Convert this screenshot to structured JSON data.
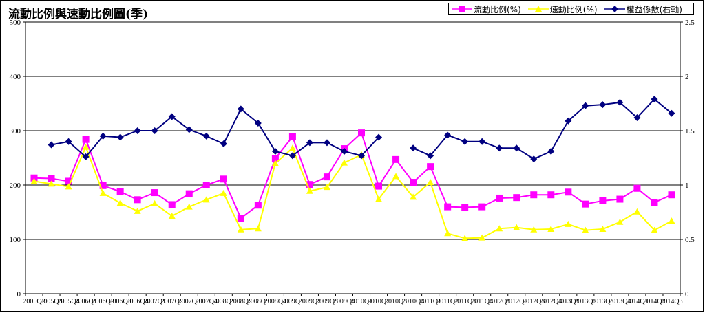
{
  "chart_data": {
    "type": "line",
    "title": "流動比例與速動比例圖(季)",
    "legend_position": "top-right",
    "grid": true,
    "x": [
      "2005Q2",
      "2005Q3",
      "2005Q4",
      "2006Q1",
      "2006Q2",
      "2006Q3",
      "2006Q4",
      "2007Q1",
      "2007Q2",
      "2007Q3",
      "2007Q4",
      "2008Q1",
      "2008Q2",
      "2008Q3",
      "2008Q4",
      "2009Q1",
      "2009Q2",
      "2009Q3",
      "2009Q4",
      "2010Q1",
      "2010Q2",
      "2010Q3",
      "2010Q4",
      "2011Q1",
      "2011Q2",
      "2011Q3",
      "2011Q4",
      "2012Q1",
      "2012Q2",
      "2012Q3",
      "2012Q4",
      "2013Q1",
      "2013Q2",
      "2013Q3",
      "2013Q4",
      "2014Q1",
      "2014Q2",
      "2014Q3"
    ],
    "y_left": {
      "range": [
        0,
        500
      ],
      "ticks": [
        "0",
        "100",
        "200",
        "300",
        "400",
        "500"
      ]
    },
    "y_right": {
      "range": [
        0,
        2.5
      ],
      "ticks": [
        "0",
        "0.5",
        "1",
        "1.5",
        "2",
        "2.5"
      ]
    },
    "series": [
      {
        "name": "流動比例(%)",
        "axis": "left",
        "color": "#ff00ff",
        "marker": "square",
        "values": [
          213,
          212,
          207,
          284,
          199,
          188,
          173,
          186,
          164,
          184,
          200,
          211,
          139,
          163,
          249,
          289,
          201,
          215,
          267,
          296,
          198,
          247,
          205,
          234,
          160,
          159,
          160,
          176,
          177,
          182,
          182,
          187,
          165,
          171,
          174,
          194,
          168,
          182
        ]
      },
      {
        "name": "速動比例(%)",
        "axis": "left",
        "color": "#ffff00",
        "marker": "triangle",
        "values": [
          207,
          202,
          197,
          270,
          185,
          167,
          152,
          166,
          143,
          160,
          173,
          185,
          118,
          120,
          240,
          268,
          189,
          196,
          241,
          256,
          174,
          216,
          178,
          205,
          111,
          102,
          103,
          120,
          122,
          118,
          119,
          128,
          117,
          119,
          132,
          151,
          117,
          134
        ]
      },
      {
        "name": "權益係數(右軸)",
        "axis": "right",
        "color": "#000080",
        "marker": "diamond",
        "values": [
          null,
          1.37,
          1.4,
          1.26,
          1.45,
          1.44,
          1.5,
          1.5,
          1.63,
          1.51,
          1.45,
          1.38,
          1.7,
          1.57,
          1.31,
          1.27,
          1.39,
          1.39,
          1.31,
          1.27,
          1.44,
          null,
          1.34,
          1.27,
          1.46,
          1.4,
          1.4,
          1.34,
          1.34,
          1.24,
          1.31,
          1.59,
          1.73,
          1.74,
          1.76,
          1.62,
          1.79,
          1.66
        ]
      }
    ]
  }
}
